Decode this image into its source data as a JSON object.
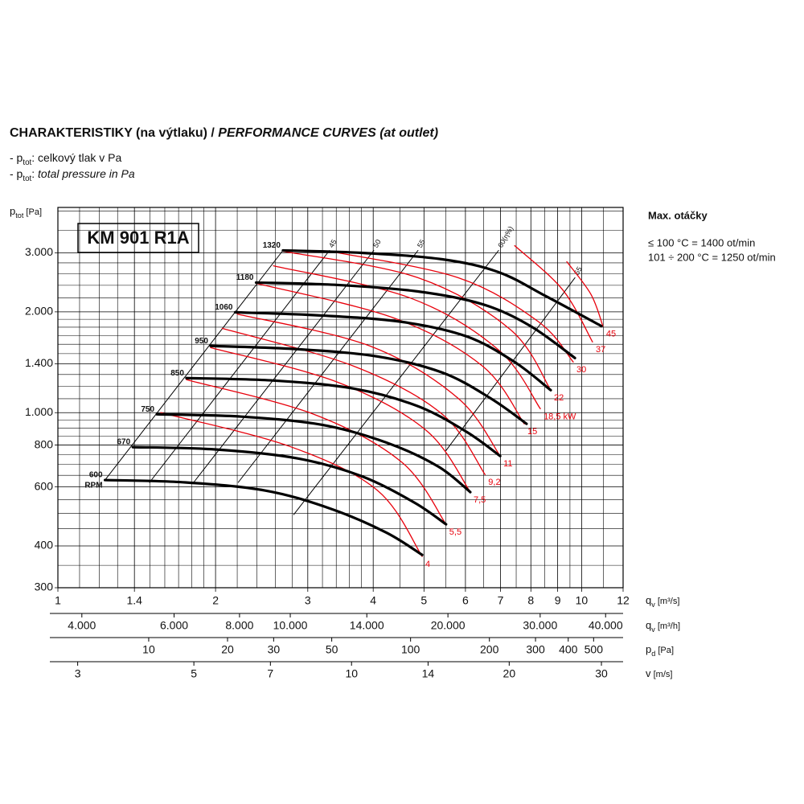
{
  "chart_data": {
    "type": "fan_curves",
    "title": {
      "main": "CHARAKTERISTIKY (na výtlaku) / ",
      "rest_italic": "PERFORMANCE CURVES (at outlet)"
    },
    "notes": [
      {
        "main": "- p",
        "sub": "tot",
        "rest": ": celkový tlak v Pa"
      },
      {
        "main": "- p",
        "sub": "tot",
        "rest": ": ",
        "rest_italic": "total pressure in Pa"
      }
    ],
    "model": "KM 901 R1A",
    "side_note": {
      "title": "Max. otáčky",
      "lines": [
        "≤ 100 °C = 1400 ot/min",
        "101 ÷ 200 °C = 1250 ot/min"
      ]
    },
    "y_label": {
      "main": "p",
      "sub": "tot",
      "unit": " [Pa]"
    },
    "x_label": {
      "main": "q",
      "sub": "v",
      "unit": " [m³/s]"
    },
    "x_log": true,
    "y_log": true,
    "grid": true,
    "xlim": [
      1,
      12
    ],
    "ylim": [
      300,
      4100
    ],
    "xticks": [
      1,
      1.4,
      2,
      3,
      4,
      5,
      6,
      7,
      8,
      9,
      10,
      12
    ],
    "yticks": [
      300,
      400,
      600,
      800,
      {
        "value": 1000,
        "label": "1.000"
      },
      {
        "value": 1400,
        "label": "1.400"
      },
      {
        "value": 2000,
        "label": "2.000"
      },
      {
        "value": 3000,
        "label": "3.000"
      }
    ],
    "x_grid": [
      1.1,
      1.2,
      1.3,
      1.5,
      1.6,
      1.7,
      1.8,
      1.9,
      2.2,
      2.4,
      2.6,
      2.8,
      3.2,
      3.4,
      3.6,
      3.8,
      4.5,
      5.5,
      6.5,
      7.5,
      8.5,
      9.5,
      11
    ],
    "y_grid": [
      350,
      450,
      500,
      550,
      650,
      700,
      750,
      850,
      900,
      950,
      1100,
      1200,
      1300,
      1500,
      1600,
      1700,
      1800,
      1900,
      2200,
      2400,
      2600,
      2800,
      3500,
      4000
    ],
    "secondary_x_axes": [
      {
        "label": {
          "main": "q",
          "sub": "v",
          "unit": " [m³/h]"
        },
        "lim": [
          3600,
          43200
        ],
        "ticks": [
          {
            "value": 4000,
            "label": "4.000"
          },
          {
            "value": 6000,
            "label": "6.000"
          },
          {
            "value": 8000,
            "label": "8.000"
          },
          {
            "value": 10000,
            "label": "10.000"
          },
          {
            "value": 14000,
            "label": "14.000"
          },
          {
            "value": 20000,
            "label": "20.000"
          },
          {
            "value": 30000,
            "label": "30.000"
          },
          {
            "value": 40000,
            "label": "40.000"
          }
        ]
      },
      {
        "label": {
          "main": "p",
          "sub": "d",
          "unit": " [Pa]"
        },
        "lim": [
          4.5,
          648
        ],
        "ticks": [
          10,
          20,
          30,
          50,
          100,
          200,
          300,
          400,
          500
        ]
      },
      {
        "label": {
          "main": "v",
          "unit": " [m/s]"
        },
        "lim": [
          2.75,
          33
        ],
        "ticks": [
          3,
          5,
          7,
          10,
          14,
          20,
          30
        ]
      }
    ],
    "speed_unit": "RPM",
    "series": [
      {
        "kind": "speed",
        "name": "1320",
        "color": "#000000",
        "width": 3.2,
        "x": [
          2.69,
          3.8,
          5.42,
          6.94,
          8.58,
          10.91
        ],
        "values": [
          3050,
          3000,
          2870,
          2627,
          2220,
          1813
        ]
      },
      {
        "kind": "speed",
        "name": "1180",
        "color": "#000000",
        "width": 3.2,
        "x": [
          2.39,
          3.42,
          4.87,
          6.47,
          7.99,
          9.71
        ],
        "values": [
          2446,
          2406,
          2301,
          2107,
          1813,
          1456
        ]
      },
      {
        "kind": "speed",
        "name": "1060",
        "color": "#000000",
        "width": 3.2,
        "x": [
          2.18,
          3.19,
          4.54,
          6.03,
          7.45,
          8.73
        ],
        "values": [
          1994,
          1950,
          1866,
          1689,
          1416,
          1167
        ]
      },
      {
        "kind": "speed",
        "name": "950",
        "color": "#000000",
        "width": 3.2,
        "x": [
          1.957,
          2.87,
          4.08,
          5.42,
          6.7,
          7.85
        ],
        "values": [
          1582,
          1547,
          1471,
          1317,
          1104,
          926
        ]
      },
      {
        "kind": "speed",
        "name": "850",
        "color": "#000000",
        "width": 3.2,
        "x": [
          1.76,
          2.58,
          3.67,
          4.87,
          6.03,
          6.99
        ],
        "values": [
          1268,
          1247,
          1180,
          1045,
          876,
          742
        ]
      },
      {
        "kind": "speed",
        "name": "750",
        "color": "#000000",
        "width": 3.2,
        "x": [
          1.545,
          2.24,
          3.19,
          4.23,
          5.32,
          6.13
        ],
        "values": [
          989,
          973,
          920,
          815,
          691,
          579
        ]
      },
      {
        "kind": "speed",
        "name": "670",
        "color": "#000000",
        "width": 3.2,
        "x": [
          1.39,
          2.01,
          2.87,
          3.8,
          4.79,
          5.51
        ],
        "values": [
          789,
          776,
          730,
          646,
          539,
          464
        ]
      },
      {
        "kind": "speed",
        "name": "600",
        "color": "#000000",
        "width": 3.2,
        "x": [
          1.23,
          1.75,
          2.49,
          3.3,
          4.23,
          4.96
        ],
        "values": [
          629,
          619,
          585,
          518,
          439,
          376
        ]
      },
      {
        "kind": "power",
        "name": "4",
        "color": "#e8000b",
        "width": 1.3,
        "x": [
          1.572,
          2.77,
          4.08,
          4.96
        ],
        "values": [
          1000,
          793,
          585,
          372
        ]
      },
      {
        "kind": "power",
        "name": "5,5",
        "color": "#e8000b",
        "width": 1.3,
        "x": [
          1.76,
          3.08,
          4.54,
          5.51
        ],
        "values": [
          1254,
          989,
          710,
          464
        ]
      },
      {
        "kind": "power",
        "name": "7,5",
        "color": "#e8000b",
        "width": 1.3,
        "x": [
          1.957,
          3.42,
          5.05,
          6.13
        ],
        "values": [
          1564,
          1233,
          885,
          579
        ]
      },
      {
        "kind": "power",
        "name": "9,2",
        "color": "#e8000b",
        "width": 1.3,
        "x": [
          2.06,
          3.67,
          5.42,
          6.54
        ],
        "values": [
          1785,
          1377,
          989,
          653
        ]
      },
      {
        "kind": "power",
        "name": "11",
        "color": "#e8000b",
        "width": 1.3,
        "x": [
          2.2,
          3.94,
          5.81,
          6.99
        ],
        "values": [
          1970,
          1582,
          1104,
          742
        ]
      },
      {
        "kind": "power",
        "name": "15",
        "color": "#e8000b",
        "width": 1.3,
        "x": [
          2.39,
          4.38,
          6.47,
          7.77
        ],
        "values": [
          2433,
          1917,
          1377,
          926
        ]
      },
      {
        "kind": "power",
        "name": "18,5 kW",
        "color": "#e8000b",
        "width": 1.3,
        "x": [
          2.58,
          4.7,
          6.94,
          8.34
        ],
        "values": [
          2745,
          2202,
          1539,
          1027
        ]
      },
      {
        "kind": "power",
        "name": "22",
        "color": "#e8000b",
        "width": 1.3,
        "x": [
          2.69,
          4.87,
          7.32,
          8.73
        ],
        "values": [
          3033,
          2529,
          1767,
          1167
        ]
      },
      {
        "kind": "power",
        "name": "30",
        "color": "#e8000b",
        "width": 1.3,
        "x": [
          3.3,
          5.81,
          8.28,
          9.64
        ],
        "values": [
          3033,
          2529,
          1866,
          1416
        ]
      },
      {
        "kind": "power",
        "name": "37",
        "color": "#e8000b",
        "width": 1.3,
        "x": [
          7.45,
          9.2,
          10.49
        ],
        "values": [
          3153,
          2327,
          1626
        ]
      },
      {
        "kind": "power",
        "name": "45",
        "color": "#e8000b",
        "width": 1.3,
        "x": [
          9.37,
          10.42,
          10.98
        ],
        "values": [
          2823,
          2255,
          1813
        ]
      },
      {
        "kind": "efficiency",
        "color": "#000000",
        "width": 1,
        "x": [
          1.23,
          2.69
        ],
        "values": [
          629,
          3050
        ]
      },
      {
        "kind": "efficiency",
        "name": "45",
        "color": "#000000",
        "width": 1,
        "x": [
          1.496,
          3.3
        ],
        "values": [
          619,
          3050
        ]
      },
      {
        "kind": "efficiency",
        "name": "50",
        "color": "#000000",
        "width": 1,
        "x": [
          1.817,
          4.01
        ],
        "values": [
          619,
          3050
        ]
      },
      {
        "kind": "efficiency",
        "name": "55",
        "color": "#000000",
        "width": 1,
        "x": [
          2.21,
          4.87
        ],
        "values": [
          619,
          3050
        ]
      },
      {
        "kind": "efficiency",
        "name": "60(η%)",
        "color": "#000000",
        "width": 1,
        "x": [
          2.82,
          6.94
        ],
        "values": [
          496,
          3050
        ]
      },
      {
        "kind": "efficiency",
        "name": "55",
        "color": "#000000",
        "width": 1,
        "x": [
          5.51,
          9.71
        ],
        "values": [
          771,
          2529
        ]
      }
    ]
  }
}
